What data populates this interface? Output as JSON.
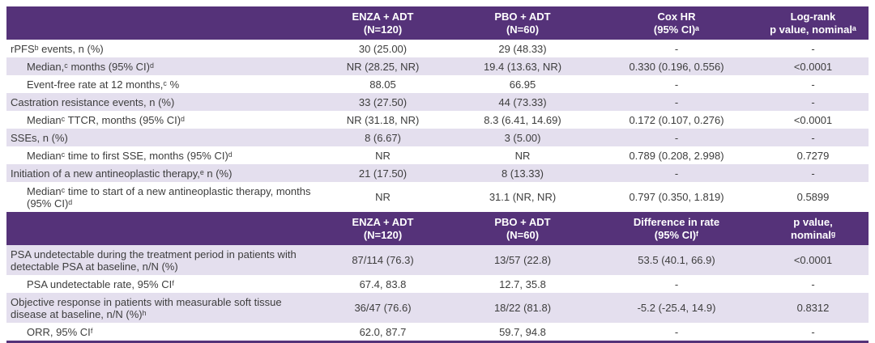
{
  "colors": {
    "header_bg": "#553279",
    "shaded_row_bg": "#e4dfee",
    "plain_row_bg": "#ffffff",
    "header_text": "#ffffff",
    "body_text": "#3d3d3d",
    "bottom_rule": "#553279"
  },
  "section1": {
    "header": [
      "",
      "ENZA + ADT\n(N=120)",
      "PBO + ADT\n(N=60)",
      "Cox HR\n(95% CI)ᵃ",
      "Log-rank\np value, nominalᵃ"
    ],
    "rows": [
      {
        "label": "rPFSᵇ events, n (%)",
        "indent": false,
        "shaded": false,
        "tall": false,
        "values": [
          "30 (25.00)",
          "29 (48.33)",
          "-",
          "-"
        ]
      },
      {
        "label": "Median,ᶜ months (95% CI)ᵈ",
        "indent": true,
        "shaded": true,
        "tall": false,
        "values": [
          "NR (28.25, NR)",
          "19.4 (13.63, NR)",
          "0.330 (0.196, 0.556)",
          "<0.0001"
        ]
      },
      {
        "label": "Event-free rate at 12 months,ᶜ %",
        "indent": true,
        "shaded": false,
        "tall": false,
        "values": [
          "88.05",
          "66.95",
          "-",
          "-"
        ]
      },
      {
        "label": "Castration resistance events, n (%)",
        "indent": false,
        "shaded": true,
        "tall": false,
        "values": [
          "33 (27.50)",
          "44 (73.33)",
          "-",
          "-"
        ]
      },
      {
        "label": "Medianᶜ TTCR, months (95% CI)ᵈ",
        "indent": true,
        "shaded": false,
        "tall": false,
        "values": [
          "NR (31.18, NR)",
          "8.3 (6.41, 14.69)",
          "0.172 (0.107, 0.276)",
          "<0.0001"
        ]
      },
      {
        "label": "SSEs, n (%)",
        "indent": false,
        "shaded": true,
        "tall": false,
        "values": [
          "8 (6.67)",
          "3 (5.00)",
          "-",
          "-"
        ]
      },
      {
        "label": "Medianᶜ time to first SSE, months (95% CI)ᵈ",
        "indent": true,
        "shaded": false,
        "tall": false,
        "values": [
          "NR",
          "NR",
          "0.789 (0.208, 2.998)",
          "0.7279"
        ]
      },
      {
        "label": "Initiation of a new antineoplastic therapy,ᵉ n (%)",
        "indent": false,
        "shaded": true,
        "tall": false,
        "values": [
          "21 (17.50)",
          "8 (13.33)",
          "-",
          "-"
        ]
      },
      {
        "label": "Medianᶜ time to start of a new antineoplastic therapy, months (95% CI)ᵈ",
        "indent": true,
        "shaded": false,
        "tall": true,
        "values": [
          "NR",
          "31.1 (NR, NR)",
          "0.797 (0.350, 1.819)",
          "0.5899"
        ]
      }
    ]
  },
  "section2": {
    "header": [
      "",
      "ENZA + ADT\n(N=120)",
      "PBO + ADT\n(N=60)",
      "Difference in rate\n(95% CI)ᶠ",
      "p value,\nnominalᵍ"
    ],
    "rows": [
      {
        "label": "PSA undetectable during the treatment period in patients with detectable PSA at baseline, n/N (%)",
        "indent": false,
        "shaded": true,
        "tall": true,
        "values": [
          "87/114 (76.3)",
          "13/57 (22.8)",
          "53.5 (40.1, 66.9)",
          "<0.0001"
        ]
      },
      {
        "label": "PSA undetectable rate, 95% CIᶠ",
        "indent": true,
        "shaded": false,
        "tall": false,
        "values": [
          "67.4, 83.8",
          "12.7, 35.8",
          "-",
          "-"
        ]
      },
      {
        "label": "Objective response in patients with measurable soft tissue disease at baseline, n/N (%)ʰ",
        "indent": false,
        "shaded": true,
        "tall": true,
        "values": [
          "36/47 (76.6)",
          "18/22 (81.8)",
          "-5.2 (-25.4, 14.9)",
          "0.8312"
        ]
      },
      {
        "label": "ORR, 95% CIᶠ",
        "indent": true,
        "shaded": false,
        "tall": false,
        "values": [
          "62.0, 87.7",
          "59.7, 94.8",
          "-",
          "-"
        ]
      }
    ]
  }
}
